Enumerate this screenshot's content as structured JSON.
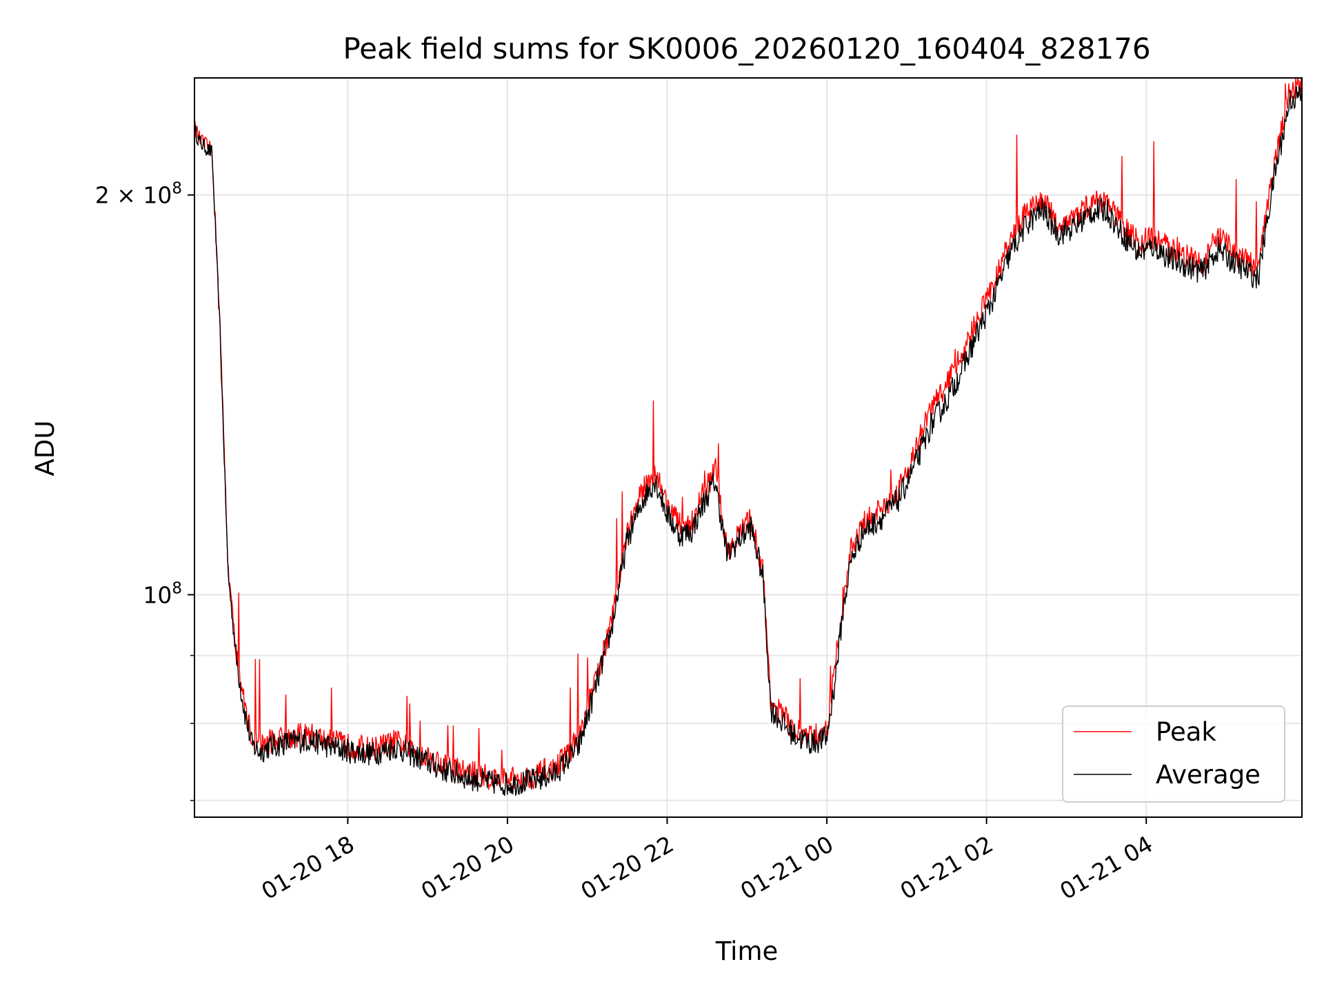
{
  "chart_data": {
    "type": "line",
    "title": "Peak field sums for SK0006_20260120_160404_828176",
    "xlabel": "Time",
    "ylabel": "ADU",
    "yscale": "log",
    "xlim_hours": [
      16.08,
      5.95
    ],
    "ylim": [
      68000000,
      245000000
    ],
    "x_ticks": [
      {
        "hour": 18,
        "label": "01-20 18"
      },
      {
        "hour": 20,
        "label": "01-20 20"
      },
      {
        "hour": 22,
        "label": "01-20 22"
      },
      {
        "hour": 0,
        "label": "01-21 00"
      },
      {
        "hour": 2,
        "label": "01-21 02"
      },
      {
        "hour": 4,
        "label": "01-21 04"
      }
    ],
    "y_ticks_major": [
      {
        "value": 100000000,
        "base": "10",
        "exp": "8"
      },
      {
        "value": 200000000,
        "base": "2 × 10",
        "exp": "8"
      }
    ],
    "y_ticks_minor": [
      70000000,
      80000000,
      90000000
    ],
    "grid": true,
    "legend": {
      "position": "lower-right"
    },
    "series": [
      {
        "name": "Peak",
        "color": "#ff0000",
        "x_hours": [
          16.08,
          16.15,
          16.3,
          16.4,
          16.5,
          16.6,
          16.7,
          16.8,
          16.9,
          17.0,
          17.2,
          17.5,
          17.8,
          18.0,
          18.3,
          18.6,
          18.9,
          19.2,
          19.5,
          19.8,
          20.0,
          20.3,
          20.6,
          20.9,
          21.1,
          21.3,
          21.5,
          21.7,
          21.85,
          22.0,
          22.15,
          22.3,
          22.45,
          22.6,
          22.75,
          22.9,
          23.05,
          23.2,
          23.3,
          23.45,
          23.6,
          23.8,
          24.0,
          24.1,
          24.2,
          24.3,
          24.45,
          24.7,
          24.9,
          25.1,
          25.3,
          25.5,
          25.7,
          25.9,
          26.1,
          26.3,
          26.5,
          26.7,
          26.9,
          27.1,
          27.3,
          27.5,
          27.7,
          27.9,
          28.1,
          28.3,
          28.5,
          28.7,
          28.9,
          29.15,
          29.4,
          29.6,
          29.8,
          29.95
        ],
        "values": [
          225000000,
          220000000,
          216000000,
          160000000,
          105000000,
          91000000,
          83000000,
          78000000,
          77000000,
          77500000,
          78000000,
          78500000,
          77500000,
          77000000,
          76500000,
          77500000,
          76000000,
          74500000,
          73500000,
          72800000,
          72500000,
          73000000,
          74000000,
          78000000,
          86000000,
          95000000,
          112000000,
          120000000,
          124000000,
          117000000,
          113000000,
          113000000,
          119000000,
          124000000,
          108000000,
          111000000,
          114000000,
          104000000,
          83000000,
          81000000,
          79000000,
          78000000,
          79000000,
          88000000,
          99000000,
          108000000,
          113000000,
          116000000,
          120000000,
          128000000,
          138000000,
          144000000,
          152000000,
          162000000,
          172000000,
          185000000,
          194000000,
          198000000,
          190000000,
          192000000,
          197000000,
          198000000,
          190000000,
          184000000,
          186000000,
          182000000,
          180000000,
          178000000,
          186000000,
          180000000,
          176000000,
          210000000,
          240000000,
          242000000
        ]
      },
      {
        "name": "Average",
        "color": "#000000",
        "x_hours": [
          16.08,
          16.15,
          16.3,
          16.4,
          16.5,
          16.6,
          16.7,
          16.8,
          16.9,
          17.0,
          17.2,
          17.5,
          17.8,
          18.0,
          18.3,
          18.6,
          18.9,
          19.2,
          19.5,
          19.8,
          20.0,
          20.3,
          20.6,
          20.9,
          21.1,
          21.3,
          21.5,
          21.7,
          21.85,
          22.0,
          22.15,
          22.3,
          22.45,
          22.6,
          22.75,
          22.9,
          23.05,
          23.2,
          23.3,
          23.45,
          23.6,
          23.8,
          24.0,
          24.1,
          24.2,
          24.3,
          24.45,
          24.7,
          24.9,
          25.1,
          25.3,
          25.5,
          25.7,
          25.9,
          26.1,
          26.3,
          26.5,
          26.7,
          26.9,
          27.1,
          27.3,
          27.5,
          27.7,
          27.9,
          28.1,
          28.3,
          28.5,
          28.7,
          28.9,
          29.15,
          29.4,
          29.6,
          29.8,
          29.95
        ],
        "values": [
          224000000,
          219000000,
          215000000,
          158000000,
          104000000,
          90000000,
          82000000,
          77000000,
          76200000,
          76800000,
          77300000,
          77800000,
          76800000,
          76300000,
          75900000,
          76800000,
          75300000,
          73800000,
          72800000,
          72200000,
          72000000,
          72400000,
          73300000,
          77000000,
          85000000,
          94000000,
          110000000,
          118000000,
          122000000,
          115000000,
          111000000,
          111500000,
          117000000,
          122000000,
          107000000,
          110000000,
          112500000,
          103000000,
          82000000,
          80000000,
          78300000,
          77300000,
          78000000,
          86000000,
          97000000,
          106000000,
          111500000,
          114500000,
          118000000,
          125000000,
          134000000,
          140000000,
          148000000,
          158000000,
          168000000,
          181000000,
          190000000,
          195000000,
          187000000,
          189000000,
          194000000,
          195000000,
          187000000,
          181000000,
          183000000,
          179000000,
          177000000,
          175000000,
          182000000,
          177000000,
          173000000,
          206000000,
          236000000,
          238000000
        ]
      }
    ]
  }
}
